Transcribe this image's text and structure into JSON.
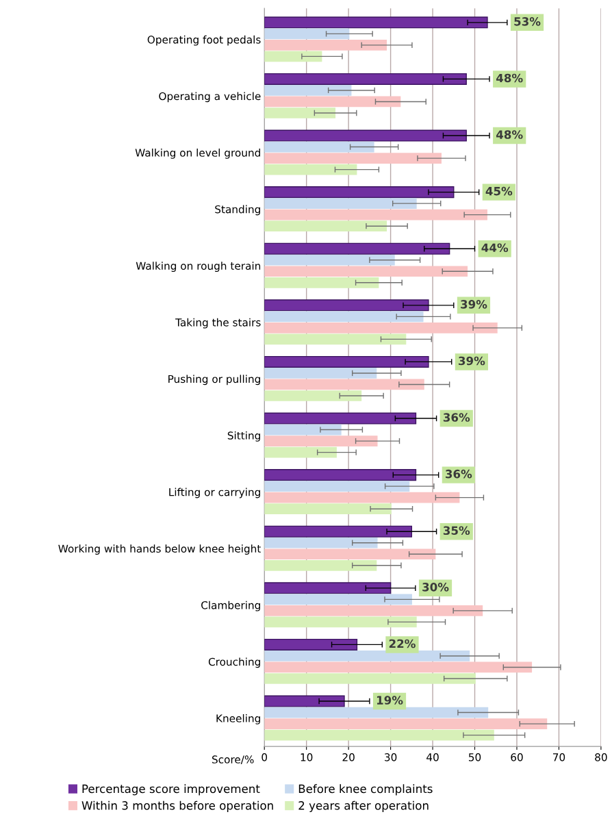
{
  "chart_data": {
    "type": "bar",
    "orientation": "horizontal",
    "xlabel": "Score/%",
    "categories": [
      "Operating foot pedals",
      "Operating a vehicle",
      "Walking on level ground",
      "Standing",
      "Walking on rough terain",
      "Taking the stairs",
      "Pushing or pulling",
      "Sitting",
      "Lifting or carrying",
      "Working with hands below knee height",
      "Clambering",
      "Crouching",
      "Kneeling"
    ],
    "series": [
      {
        "name": "Percentage score improvement",
        "color": "#7030a0",
        "values": [
          53,
          48,
          48,
          45,
          44,
          39,
          39,
          36,
          36,
          35,
          30,
          22,
          19
        ],
        "errors": [
          4.7,
          5.5,
          5.5,
          6,
          6,
          6,
          5.5,
          4.9,
          5.4,
          5.9,
          5.9,
          6,
          6
        ],
        "value_labels": [
          "53%",
          "48%",
          "48%",
          "45%",
          "44%",
          "39%",
          "39%",
          "36%",
          "36%",
          "35%",
          "30%",
          "22%",
          "19%"
        ]
      },
      {
        "name": "Before knee complaints",
        "color": "#c6d9f0",
        "values": [
          20.2,
          20.7,
          26.1,
          36.2,
          31,
          37.8,
          26.7,
          18.3,
          34.5,
          26.9,
          35.1,
          48.8,
          53.2
        ],
        "errors": [
          5.5,
          5.5,
          5.7,
          5.7,
          6,
          6.4,
          5.8,
          5,
          5.8,
          6,
          6.5,
          7,
          7.2
        ]
      },
      {
        "name": "Within 3 months before operation",
        "color": "#f9c4c4",
        "values": [
          29.1,
          32.4,
          42.1,
          53,
          48.3,
          55.4,
          38,
          26.9,
          46.4,
          40.7,
          51.9,
          63.6,
          67.2
        ],
        "errors": [
          6,
          6,
          5.7,
          5.5,
          6,
          5.8,
          6,
          5.2,
          5.7,
          6.3,
          7,
          6.8,
          6.5
        ]
      },
      {
        "name": "2 years after operation",
        "color": "#d7f0b8",
        "values": [
          13.7,
          16.9,
          22,
          29.1,
          27.2,
          33.7,
          23.1,
          17.2,
          30.2,
          26.7,
          36.2,
          50.2,
          54.6
        ],
        "errors": [
          4.8,
          5,
          5.2,
          4.9,
          5.5,
          6,
          5.2,
          4.6,
          5,
          5.8,
          6.8,
          7.5,
          7.3
        ]
      }
    ],
    "xlim": [
      0,
      80
    ],
    "xticks": [
      0,
      10,
      20,
      30,
      40,
      50,
      60,
      70,
      80
    ],
    "grid": "x",
    "legend": "bottom"
  }
}
